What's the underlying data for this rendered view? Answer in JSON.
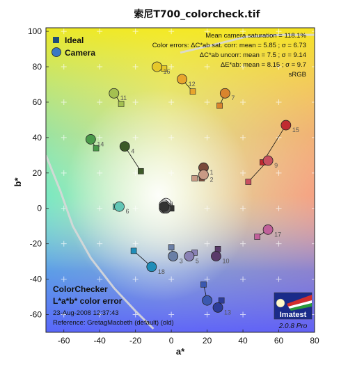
{
  "chart_data": {
    "type": "scatter",
    "title": "索尼T700_colorcheck.tif",
    "xlabel": "a*",
    "ylabel": "b*",
    "xlim": [
      -70,
      80
    ],
    "ylim": [
      -70,
      102
    ],
    "xticks": [
      -60,
      -40,
      -20,
      0,
      20,
      40,
      60,
      80
    ],
    "yticks": [
      -60,
      -40,
      -20,
      0,
      20,
      40,
      60,
      80,
      100
    ],
    "grid": true,
    "legend_position": "top-left",
    "legend": [
      {
        "name": "Ideal",
        "marker": "square",
        "color": "#1f4e79"
      },
      {
        "name": "Camera",
        "marker": "circle",
        "color": "#3b78c4"
      }
    ],
    "info_lines": [
      "Mean camera saturation = 118.1%",
      "Color errors:  ΔC*ab sat. corr:  mean = 5.85 ;  σ = 6.73",
      "ΔC*ab uncorr:  mean = 7.5 ;  σ = 9.14",
      "ΔE*ab:  mean = 8.15 ;  σ = 9.7",
      "sRGB"
    ],
    "caption": {
      "heading1": "ColorChecker",
      "heading2": "L*a*b* color error",
      "date": "23-Aug-2008 12:37:43",
      "reference": "Reference: GretagMacbeth (default) (old)"
    },
    "logo": {
      "name": "Imatest",
      "version": "2.0.8  Pro"
    },
    "patches": [
      {
        "id": "1",
        "ideal": [
          17,
          17
        ],
        "camera": [
          18,
          23
        ],
        "color": "#7a4a3a"
      },
      {
        "id": "2",
        "ideal": [
          13,
          17
        ],
        "camera": [
          18,
          19
        ],
        "color": "#c89a85"
      },
      {
        "id": "3",
        "ideal": [
          0,
          -22
        ],
        "camera": [
          1,
          -27
        ],
        "color": "#6a7fa6"
      },
      {
        "id": "4",
        "ideal": [
          -17,
          21
        ],
        "camera": [
          -26,
          35
        ],
        "color": "#3d5a28"
      },
      {
        "id": "5",
        "ideal": [
          13,
          -25
        ],
        "camera": [
          10,
          -27
        ],
        "color": "#8a82b5"
      },
      {
        "id": "6",
        "ideal": [
          -31,
          1
        ],
        "camera": [
          -29,
          1
        ],
        "color": "#62c6b5"
      },
      {
        "id": "7",
        "ideal": [
          27,
          58
        ],
        "camera": [
          30,
          65
        ],
        "color": "#d9852e"
      },
      {
        "id": "9",
        "ideal": [
          43,
          15
        ],
        "camera": [
          54,
          27
        ],
        "color": "#c85060"
      },
      {
        "id": "10",
        "ideal": [
          26,
          -23
        ],
        "camera": [
          25,
          -27
        ],
        "color": "#5a3a6a"
      },
      {
        "id": "11",
        "ideal": [
          -28,
          59
        ],
        "camera": [
          -32,
          65
        ],
        "color": "#a4c050"
      },
      {
        "id": "12",
        "ideal": [
          12,
          66
        ],
        "camera": [
          6,
          73
        ],
        "color": "#e8a52d"
      },
      {
        "id": "13",
        "ideal": [
          28,
          -52
        ],
        "camera": [
          26,
          -56
        ],
        "color": "#2d3c98"
      },
      {
        "id": "14",
        "ideal": [
          -42,
          34
        ],
        "camera": [
          -45,
          39
        ],
        "color": "#4a9a4a"
      },
      {
        "id": "15",
        "ideal": [
          51,
          26
        ],
        "camera": [
          64,
          47
        ],
        "color": "#c02a30"
      },
      {
        "id": "16",
        "ideal": [
          -4,
          79
        ],
        "camera": [
          -8,
          80
        ],
        "color": "#e6c82a"
      },
      {
        "id": "17",
        "ideal": [
          48,
          -16
        ],
        "camera": [
          54,
          -12
        ],
        "color": "#c0609a"
      },
      {
        "id": "18",
        "ideal": [
          -21,
          -24
        ],
        "camera": [
          -11,
          -33
        ],
        "color": "#1f8db8"
      },
      {
        "id": "8",
        "ideal": [
          18,
          -43
        ],
        "camera": [
          20,
          -52
        ],
        "color": "#3a58b0"
      },
      {
        "id": "19",
        "ideal": [
          -1,
          2
        ],
        "camera": [
          -3,
          3
        ],
        "color": "#f4f4f4"
      },
      {
        "id": "20",
        "ideal": [
          -1,
          1
        ],
        "camera": [
          -4,
          2
        ],
        "color": "#cfcfcf"
      },
      {
        "id": "21",
        "ideal": [
          -1,
          1
        ],
        "camera": [
          -3,
          1
        ],
        "color": "#a8a8a8"
      },
      {
        "id": "22",
        "ideal": [
          0,
          0
        ],
        "camera": [
          -4,
          0
        ],
        "color": "#7c7c7c"
      },
      {
        "id": "23",
        "ideal": [
          0,
          0
        ],
        "camera": [
          -3,
          0
        ],
        "color": "#545454"
      },
      {
        "id": "24",
        "ideal": [
          0,
          0
        ],
        "camera": [
          -4,
          1
        ],
        "color": "#333333"
      }
    ],
    "labelled_ids": [
      "1",
      "2",
      "3",
      "4",
      "5",
      "6",
      "7",
      "9",
      "10",
      "11",
      "12",
      "13",
      "14",
      "15",
      "16",
      "17",
      "18"
    ]
  }
}
